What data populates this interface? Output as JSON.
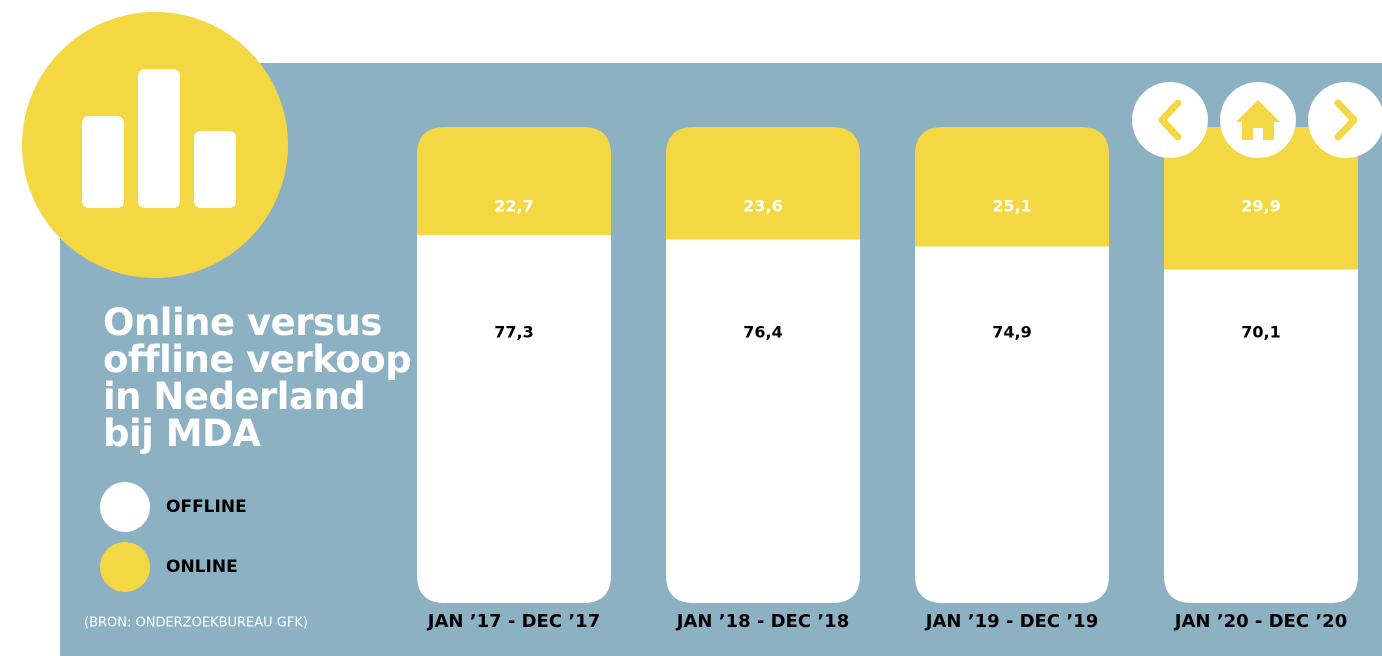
{
  "chart_data": {
    "type": "bar",
    "stacked": true,
    "title": "Online versus offline verkoop in Nederland bij MDA",
    "source": "(BRON: ONDERZOEKBUREAU GFK)",
    "categories": [
      "JAN ’17 - DEC ’17",
      "JAN ’18 - DEC ’18",
      "JAN ’19 - DEC ’19",
      "JAN ’20 - DEC ’20"
    ],
    "series": [
      {
        "name": "OFFLINE",
        "color": "#ffffff",
        "values": [
          77.3,
          76.4,
          74.9,
          70.1
        ],
        "value_labels": [
          "77,3",
          "76,4",
          "74,9",
          "70,1"
        ]
      },
      {
        "name": "ONLINE",
        "color": "#f3d843",
        "values": [
          22.7,
          23.6,
          25.1,
          29.9
        ],
        "value_labels": [
          "22,7",
          "23,6",
          "25,1",
          "29,9"
        ]
      }
    ],
    "ylim": [
      0,
      100
    ]
  }
}
